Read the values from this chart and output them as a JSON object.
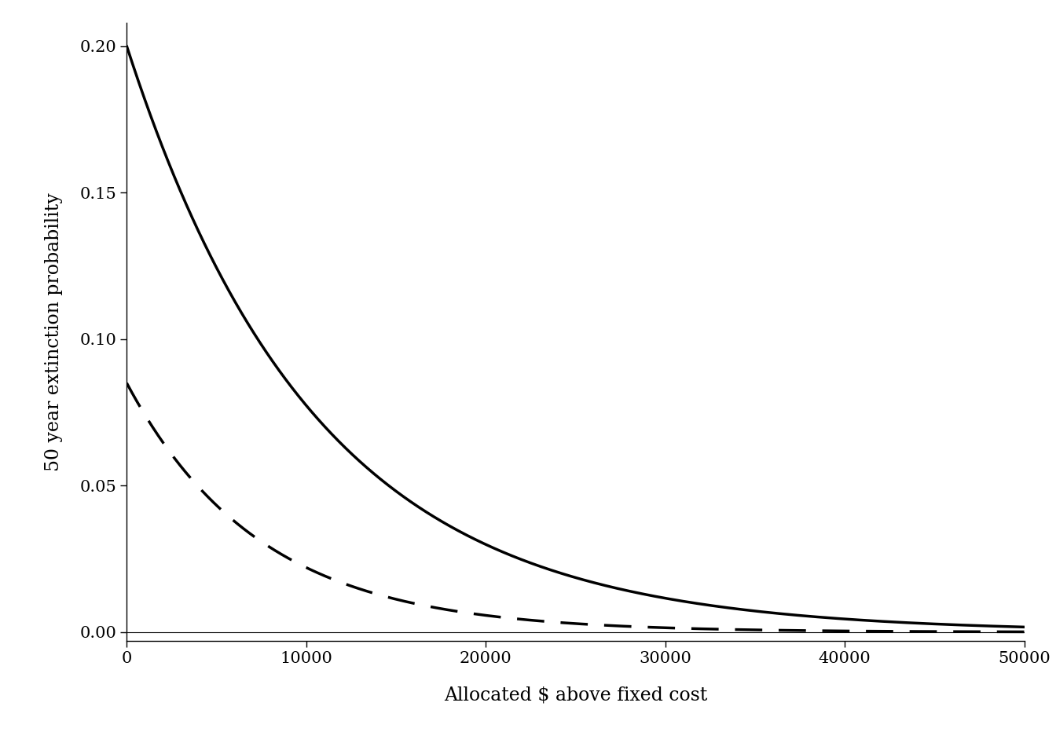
{
  "xlabel": "Allocated $ above fixed cost",
  "ylabel": "50 year extinction probability",
  "xlim": [
    0,
    50000
  ],
  "ylim": [
    -0.003,
    0.208
  ],
  "xticks": [
    0,
    10000,
    20000,
    30000,
    40000,
    50000
  ],
  "xtick_labels": [
    "0",
    "10000",
    "20000",
    "30000",
    "40000",
    "50000"
  ],
  "yticks": [
    0.0,
    0.05,
    0.1,
    0.15,
    0.2
  ],
  "solid_a0": 0.2,
  "solid_decay": 9.5e-05,
  "solid_asymptote": 0.0,
  "dashed_a0": 0.085,
  "dashed_decay": 0.000135,
  "dashed_asymptote": 0.0,
  "line_color": "#000000",
  "linewidth": 2.5,
  "bg_color": "#ffffff",
  "font_size_label": 17,
  "font_size_tick": 15
}
